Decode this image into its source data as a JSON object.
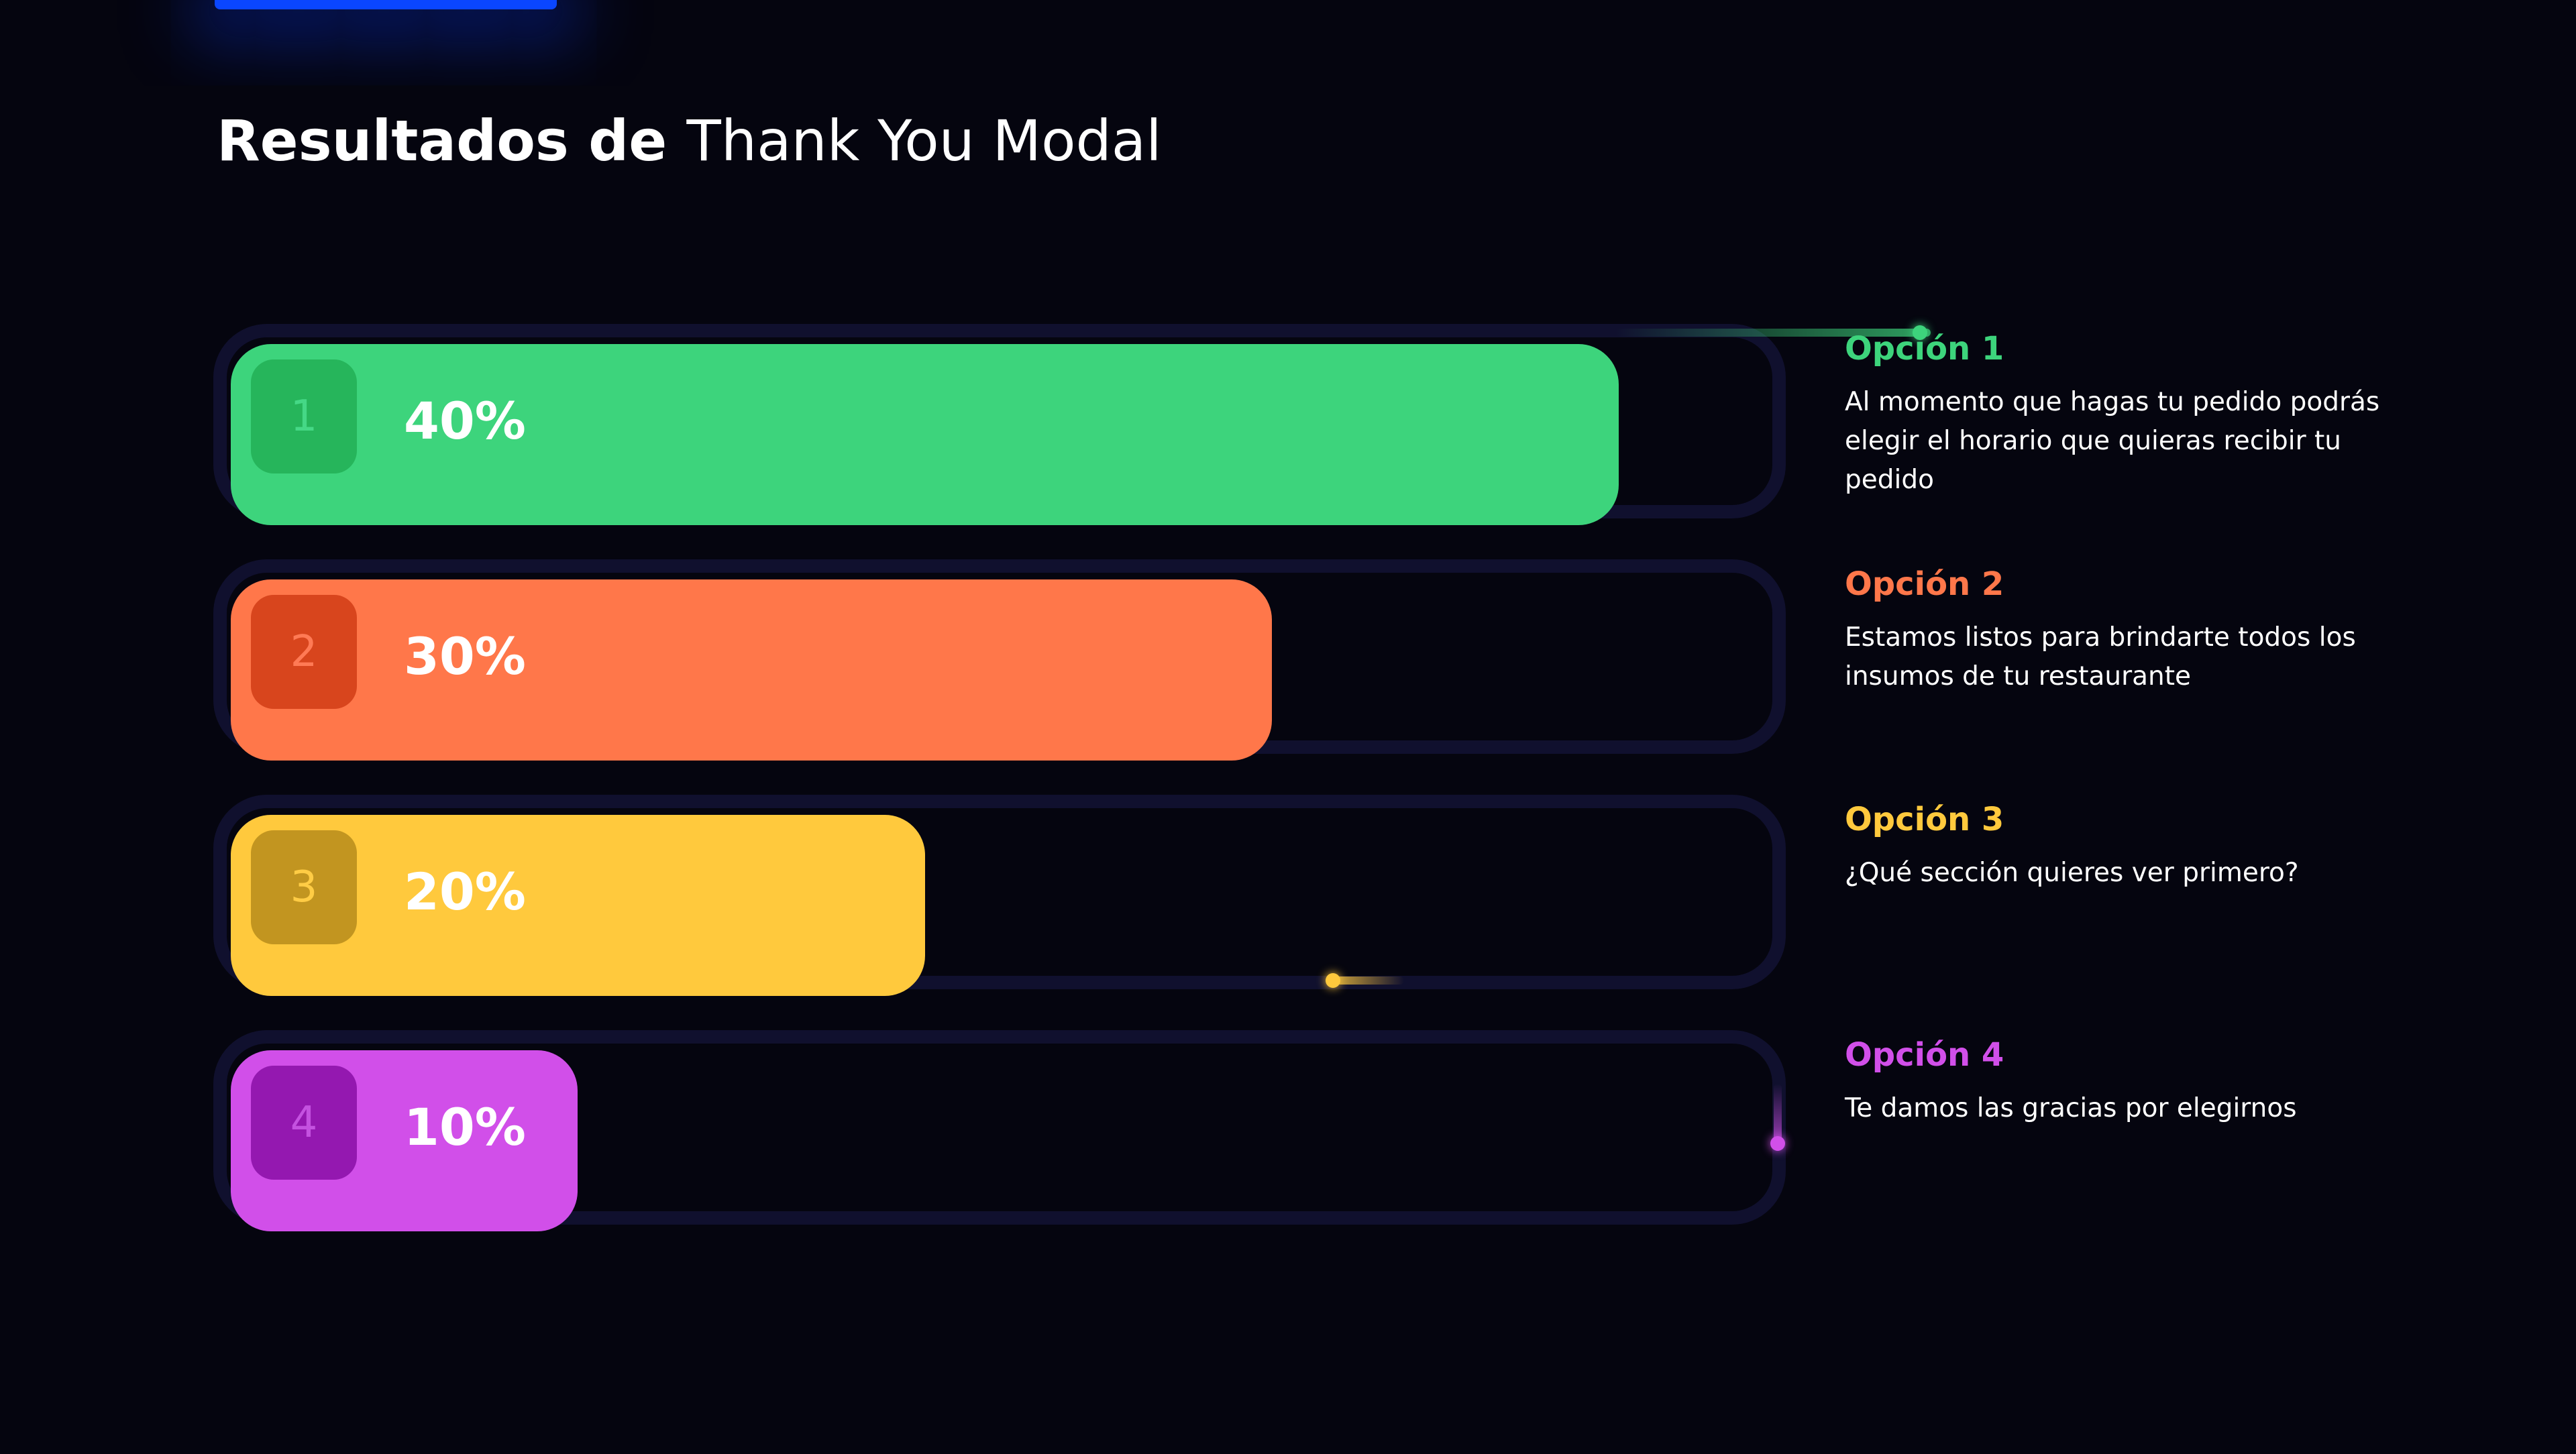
{
  "title": {
    "bold": "Resultados de",
    "rest": "Thank You Modal"
  },
  "results": [
    {
      "number": "1",
      "percent_label": "40%",
      "value": 40,
      "option_label": "Opción 1",
      "description": "Al momento que hagas tu pedido podrás elegir el horario que quieras recibir tu pedido",
      "color": "#3dd47c",
      "badge_color": "#26b55b",
      "badge_text_color": "#45d886"
    },
    {
      "number": "2",
      "percent_label": "30%",
      "value": 30,
      "option_label": "Opción 2",
      "description": "Estamos listos para brindarte todos los insumos de tu restaurante",
      "color": "#ff774a",
      "badge_color": "#d8451d",
      "badge_text_color": "#ff7a55"
    },
    {
      "number": "3",
      "percent_label": "20%",
      "value": 20,
      "option_label": "Opción 3",
      "description": "¿Qué sección quieres ver primero?",
      "color": "#ffc93d",
      "badge_color": "#c29520",
      "badge_text_color": "#ffcc45"
    },
    {
      "number": "4",
      "percent_label": "10%",
      "value": 10,
      "option_label": "Opción 4",
      "description": "Te damos las gracias por elegirnos",
      "color": "#d14fe9",
      "badge_color": "#9418b0",
      "badge_text_color": "#c452e0"
    }
  ],
  "colors": {
    "background": "#05050f",
    "track_border": "#10102e",
    "accent_blue": "#0a46ff"
  }
}
